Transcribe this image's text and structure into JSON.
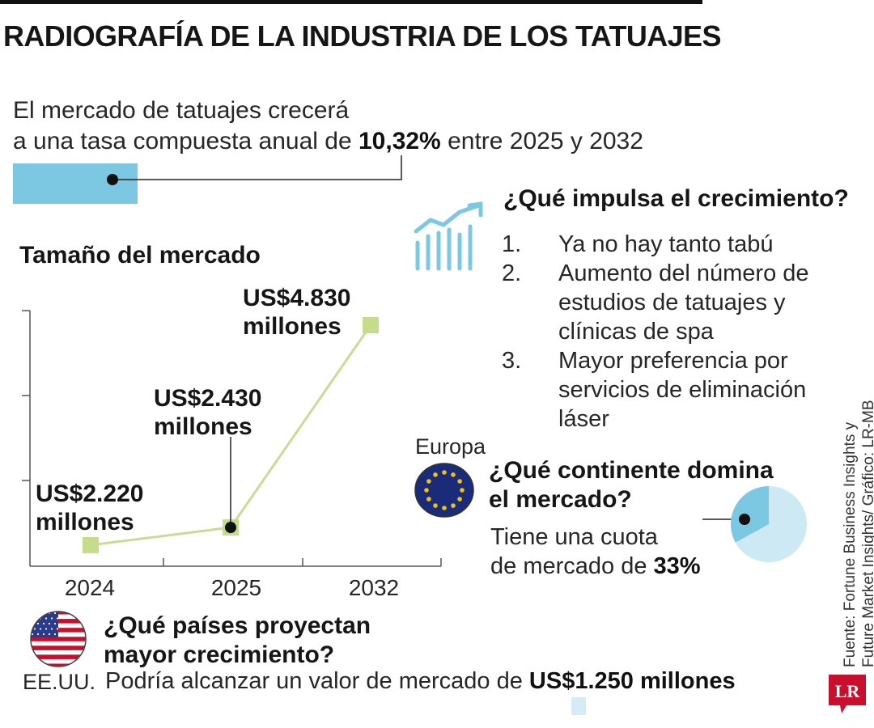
{
  "title": "RADIOGRAFÍA DE LA INDUSTRIA DE LOS TATUAJES",
  "intro": {
    "line1": "El mercado de tatuajes crecerá",
    "line2_pre": "a una tasa compuesta anual de ",
    "rate": "10,32%",
    "line2_post": " entre 2025 y 2032"
  },
  "market": {
    "title": "Tamaño del mercado"
  },
  "chart_data": {
    "type": "line",
    "categories": [
      "2024",
      "2025",
      "2032"
    ],
    "series": [
      {
        "values": [
          2220,
          2430,
          4830
        ]
      }
    ],
    "labels": [
      {
        "line1": "US$2.220",
        "line2": "millones"
      },
      {
        "line1": "US$2.430",
        "line2": "millones"
      },
      {
        "line1": "US$4.830",
        "line2": "millones"
      }
    ],
    "colors": {
      "line": "#c8dc96",
      "marker": "#c4dc8c"
    }
  },
  "growth": {
    "title": "¿Qué impulsa el crecimiento?",
    "items": [
      {
        "num": "1.",
        "text": "Ya no hay tanto tabú"
      },
      {
        "num": "2.",
        "text": "Aumento del número de estudios de tatuajes y clínicas de spa"
      },
      {
        "num": "3.",
        "text": "Mayor preferencia por servicios de eliminación láser"
      }
    ]
  },
  "continent": {
    "label": "Europa",
    "title_line1": "¿Qué continente domina",
    "title_line2": "el mercado?",
    "text_line1": "Tiene una cuota",
    "text_line2_pre": "de mercado de ",
    "share": "33%",
    "share_value": 33,
    "colors": {
      "share": "#7cc8e2",
      "rest": "#cde9f4"
    }
  },
  "countries": {
    "title_line1": "¿Qué países proyectan",
    "title_line2": "mayor crecimiento?",
    "country": "EE.UU.",
    "text_pre": "Podría alcanzar un valor de mercado de ",
    "value": "US$1.250 millones"
  },
  "source": {
    "line1": "Fuente:  Fortune Business Insights y",
    "line2": "Future Market Insights/ Gráfico: LR-MB"
  },
  "logo": {
    "text": "LR",
    "color": "#c8102e"
  }
}
